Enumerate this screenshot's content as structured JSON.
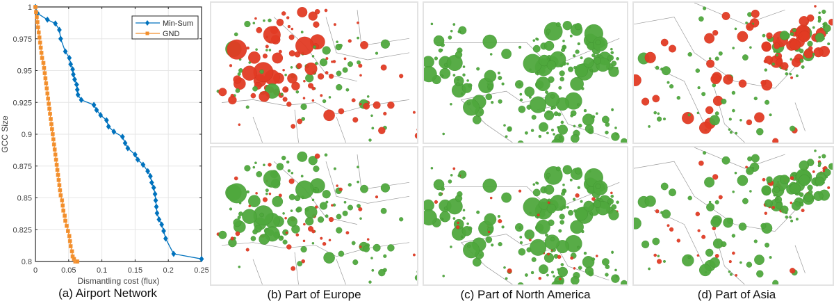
{
  "chart_data": {
    "type": "line",
    "title": "(a) Airport Network",
    "xlabel": "Dismantling cost (flux)",
    "ylabel": "GCC Size",
    "xlim": [
      0,
      0.25
    ],
    "ylim": [
      0.8,
      1.0
    ],
    "xticks": [
      0,
      0.05,
      0.1,
      0.15,
      0.2,
      0.25
    ],
    "xtick_labels": [
      "0",
      "0.05",
      "0.1",
      "0.15",
      "0.2",
      "0.25"
    ],
    "yticks": [
      0.8,
      0.825,
      0.85,
      0.875,
      0.9,
      0.925,
      0.95,
      0.975,
      1.0
    ],
    "ytick_labels": [
      "0.8",
      "0.825",
      "0.85",
      "0.875",
      "0.9",
      "0.925",
      "0.95",
      "0.975",
      "1"
    ],
    "grid": true,
    "legend_position": "upper right",
    "series": [
      {
        "name": "Min-Sum",
        "color": "#0072BD",
        "marker": "diamond",
        "x": [
          0,
          0.003,
          0.018,
          0.03,
          0.036,
          0.038,
          0.045,
          0.051,
          0.053,
          0.056,
          0.057,
          0.059,
          0.062,
          0.063,
          0.064,
          0.069,
          0.088,
          0.092,
          0.098,
          0.107,
          0.11,
          0.118,
          0.131,
          0.135,
          0.139,
          0.15,
          0.154,
          0.162,
          0.169,
          0.173,
          0.175,
          0.178,
          0.18,
          0.181,
          0.182,
          0.183,
          0.186,
          0.19,
          0.193,
          0.196,
          0.208,
          0.25
        ],
        "y": [
          1.0,
          0.995,
          0.99,
          0.987,
          0.982,
          0.975,
          0.965,
          0.96,
          0.955,
          0.951,
          0.947,
          0.943,
          0.939,
          0.935,
          0.931,
          0.927,
          0.923,
          0.919,
          0.915,
          0.911,
          0.906,
          0.902,
          0.898,
          0.893,
          0.889,
          0.884,
          0.88,
          0.876,
          0.871,
          0.867,
          0.862,
          0.858,
          0.853,
          0.848,
          0.843,
          0.838,
          0.833,
          0.829,
          0.824,
          0.818,
          0.806,
          0.802
        ]
      },
      {
        "name": "GND",
        "color": "#F28E2B",
        "marker": "square",
        "x": [
          0,
          0.001,
          0.002,
          0.003,
          0.004,
          0.005,
          0.006,
          0.007,
          0.008,
          0.009,
          0.01,
          0.012,
          0.013,
          0.014,
          0.015,
          0.016,
          0.017,
          0.018,
          0.019,
          0.02,
          0.021,
          0.022,
          0.023,
          0.024,
          0.025,
          0.026,
          0.027,
          0.028,
          0.029,
          0.03,
          0.031,
          0.032,
          0.033,
          0.034,
          0.035,
          0.036,
          0.037,
          0.038,
          0.04,
          0.041,
          0.042,
          0.044,
          0.045,
          0.047,
          0.049,
          0.051,
          0.052,
          0.053,
          0.055,
          0.056,
          0.058,
          0.06,
          0.062,
          0.063
        ],
        "y": [
          1.0,
          0.996,
          0.992,
          0.988,
          0.984,
          0.98,
          0.976,
          0.972,
          0.968,
          0.964,
          0.96,
          0.956,
          0.952,
          0.948,
          0.944,
          0.94,
          0.936,
          0.932,
          0.928,
          0.924,
          0.92,
          0.916,
          0.912,
          0.908,
          0.904,
          0.9,
          0.896,
          0.892,
          0.888,
          0.884,
          0.88,
          0.876,
          0.872,
          0.868,
          0.864,
          0.86,
          0.856,
          0.852,
          0.848,
          0.844,
          0.84,
          0.836,
          0.832,
          0.828,
          0.824,
          0.82,
          0.816,
          0.812,
          0.808,
          0.804,
          0.802,
          0.8,
          0.8,
          0.8
        ]
      }
    ]
  },
  "captions": {
    "a": "(a) Airport Network",
    "b": "(b) Part of Europe",
    "c": "(c) Part of North America",
    "d": "(d) Part of Asia"
  },
  "legend": {
    "items": [
      {
        "label": "Min-Sum",
        "color": "#0072BD",
        "marker": "diamond"
      },
      {
        "label": "GND",
        "color": "#F28E2B",
        "marker": "square"
      }
    ]
  },
  "maps": {
    "node_colors": {
      "kept": "#4FA83D",
      "removed": "#E23B24",
      "border": "#9a9a9a"
    },
    "panels": [
      {
        "id": "europe-top",
        "region": "Europe",
        "method": "top"
      },
      {
        "id": "europe-bottom",
        "region": "Europe",
        "method": "bottom"
      },
      {
        "id": "na-top",
        "region": "North America",
        "method": "top"
      },
      {
        "id": "na-bottom",
        "region": "North America",
        "method": "bottom"
      },
      {
        "id": "asia-top",
        "region": "Asia",
        "method": "top"
      },
      {
        "id": "asia-bottom",
        "region": "Asia",
        "method": "bottom"
      }
    ]
  }
}
